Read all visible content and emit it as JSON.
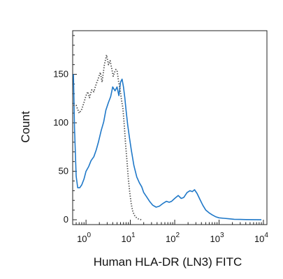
{
  "chart_data": {
    "type": "line",
    "xlabel": "Human HLA-DR (LN3) FITC",
    "ylabel": "Count",
    "x_scale": "log",
    "xlim": [
      0.5,
      12000
    ],
    "ylim": [
      -5,
      195
    ],
    "grid": false,
    "y_ticks": [
      {
        "value": 0,
        "label": "0"
      },
      {
        "value": 50,
        "label": "50"
      },
      {
        "value": 100,
        "label": "100"
      },
      {
        "value": 150,
        "label": "150"
      }
    ],
    "x_ticks": [
      {
        "value": 1,
        "base": "10",
        "exp": "0"
      },
      {
        "value": 10,
        "base": "10",
        "exp": "1"
      },
      {
        "value": 100,
        "base": "10",
        "exp": "2"
      },
      {
        "value": 1000,
        "base": "10",
        "exp": "3"
      },
      {
        "value": 10000,
        "base": "10",
        "exp": "4"
      }
    ],
    "series": [
      {
        "style": "solid",
        "color": "#1f78c8",
        "x": [
          0.52,
          0.55,
          0.6,
          0.65,
          0.72,
          0.8,
          0.9,
          1.0,
          1.15,
          1.3,
          1.5,
          1.7,
          1.9,
          2.2,
          2.5,
          2.8,
          3.2,
          3.6,
          4.0,
          4.5,
          5.0,
          5.5,
          6.0,
          6.5,
          7.0,
          7.5,
          8.0,
          8.7,
          9.5,
          10.5,
          12,
          14,
          16,
          18,
          20,
          23,
          27,
          32,
          38,
          45,
          55,
          65,
          75,
          85,
          100,
          120,
          140,
          160,
          190,
          220,
          250,
          280,
          320,
          370,
          430,
          500,
          600,
          700,
          850,
          1000,
          1300,
          1700,
          2200,
          3000,
          4000,
          6000,
          9000
        ],
        "y": [
          150,
          95,
          45,
          33,
          33,
          36,
          42,
          50,
          55,
          61,
          65,
          72,
          80,
          92,
          101,
          113,
          121,
          127,
          137,
          133,
          137,
          128,
          142,
          145,
          137,
          126,
          113,
          98,
          85,
          72,
          56,
          44,
          38,
          34,
          28,
          24,
          19,
          15,
          13,
          14,
          17,
          19,
          18,
          19,
          22,
          25,
          22,
          23,
          28,
          30,
          29,
          31,
          27,
          21,
          15,
          10,
          7,
          5,
          3,
          2,
          1.5,
          1,
          0.5,
          0.3,
          0.2,
          0.1,
          0
        ]
      },
      {
        "style": "dotted",
        "color": "#4a4a4a",
        "x": [
          0.52,
          0.6,
          0.7,
          0.8,
          0.9,
          1.0,
          1.1,
          1.2,
          1.35,
          1.5,
          1.7,
          1.9,
          2.1,
          2.3,
          2.6,
          2.9,
          3.2,
          3.5,
          3.8,
          4.1,
          4.4,
          4.7,
          5.0,
          5.4,
          5.8,
          6.3,
          6.8,
          7.3,
          7.8,
          8.4,
          9.0,
          9.7,
          10.5,
          11.3,
          12.2,
          13,
          14,
          15,
          16,
          18
        ],
        "y": [
          118,
          118,
          110,
          114,
          121,
          128,
          132,
          126,
          134,
          132,
          140,
          146,
          152,
          142,
          160,
          170,
          160,
          164,
          156,
          148,
          152,
          155,
          154,
          143,
          136,
          124,
          115,
          97,
          78,
          60,
          42,
          28,
          16,
          9,
          5,
          3,
          2,
          1,
          0.5,
          0
        ]
      }
    ]
  }
}
